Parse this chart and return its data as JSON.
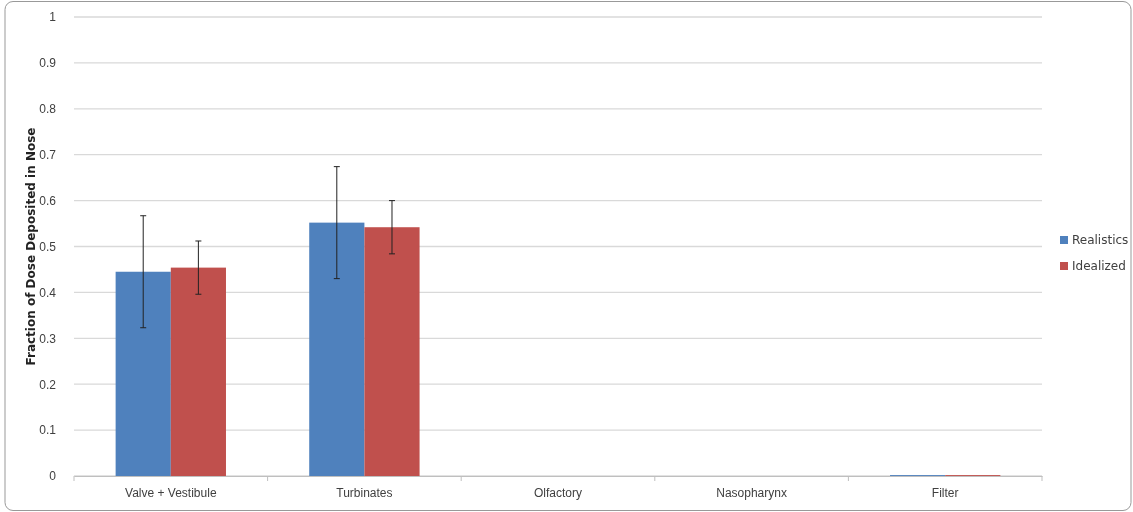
{
  "chart_data": {
    "type": "bar",
    "ylabel": "Fraction of Dose Deposited in Nose",
    "categories": [
      "Valve + Vestibule",
      "Turbinates",
      "Olfactory",
      "Nasopharynx",
      "Filter"
    ],
    "series": [
      {
        "name": "Realistics",
        "color": "#4f81bd",
        "values": [
          0.445,
          0.552,
          0,
          0,
          0.002
        ],
        "errors": [
          0.122,
          0.122,
          null,
          null,
          null
        ]
      },
      {
        "name": "Idealized",
        "color": "#c0504d",
        "values": [
          0.454,
          0.542,
          0,
          0,
          0.002
        ],
        "errors": [
          0.058,
          0.058,
          null,
          null,
          null
        ]
      }
    ],
    "ylim": [
      0,
      1
    ],
    "yticks": [
      0,
      0.1,
      0.2,
      0.3,
      0.4,
      0.5,
      0.6,
      0.7,
      0.8,
      0.9,
      1
    ],
    "grid": "y",
    "legend": "right"
  }
}
